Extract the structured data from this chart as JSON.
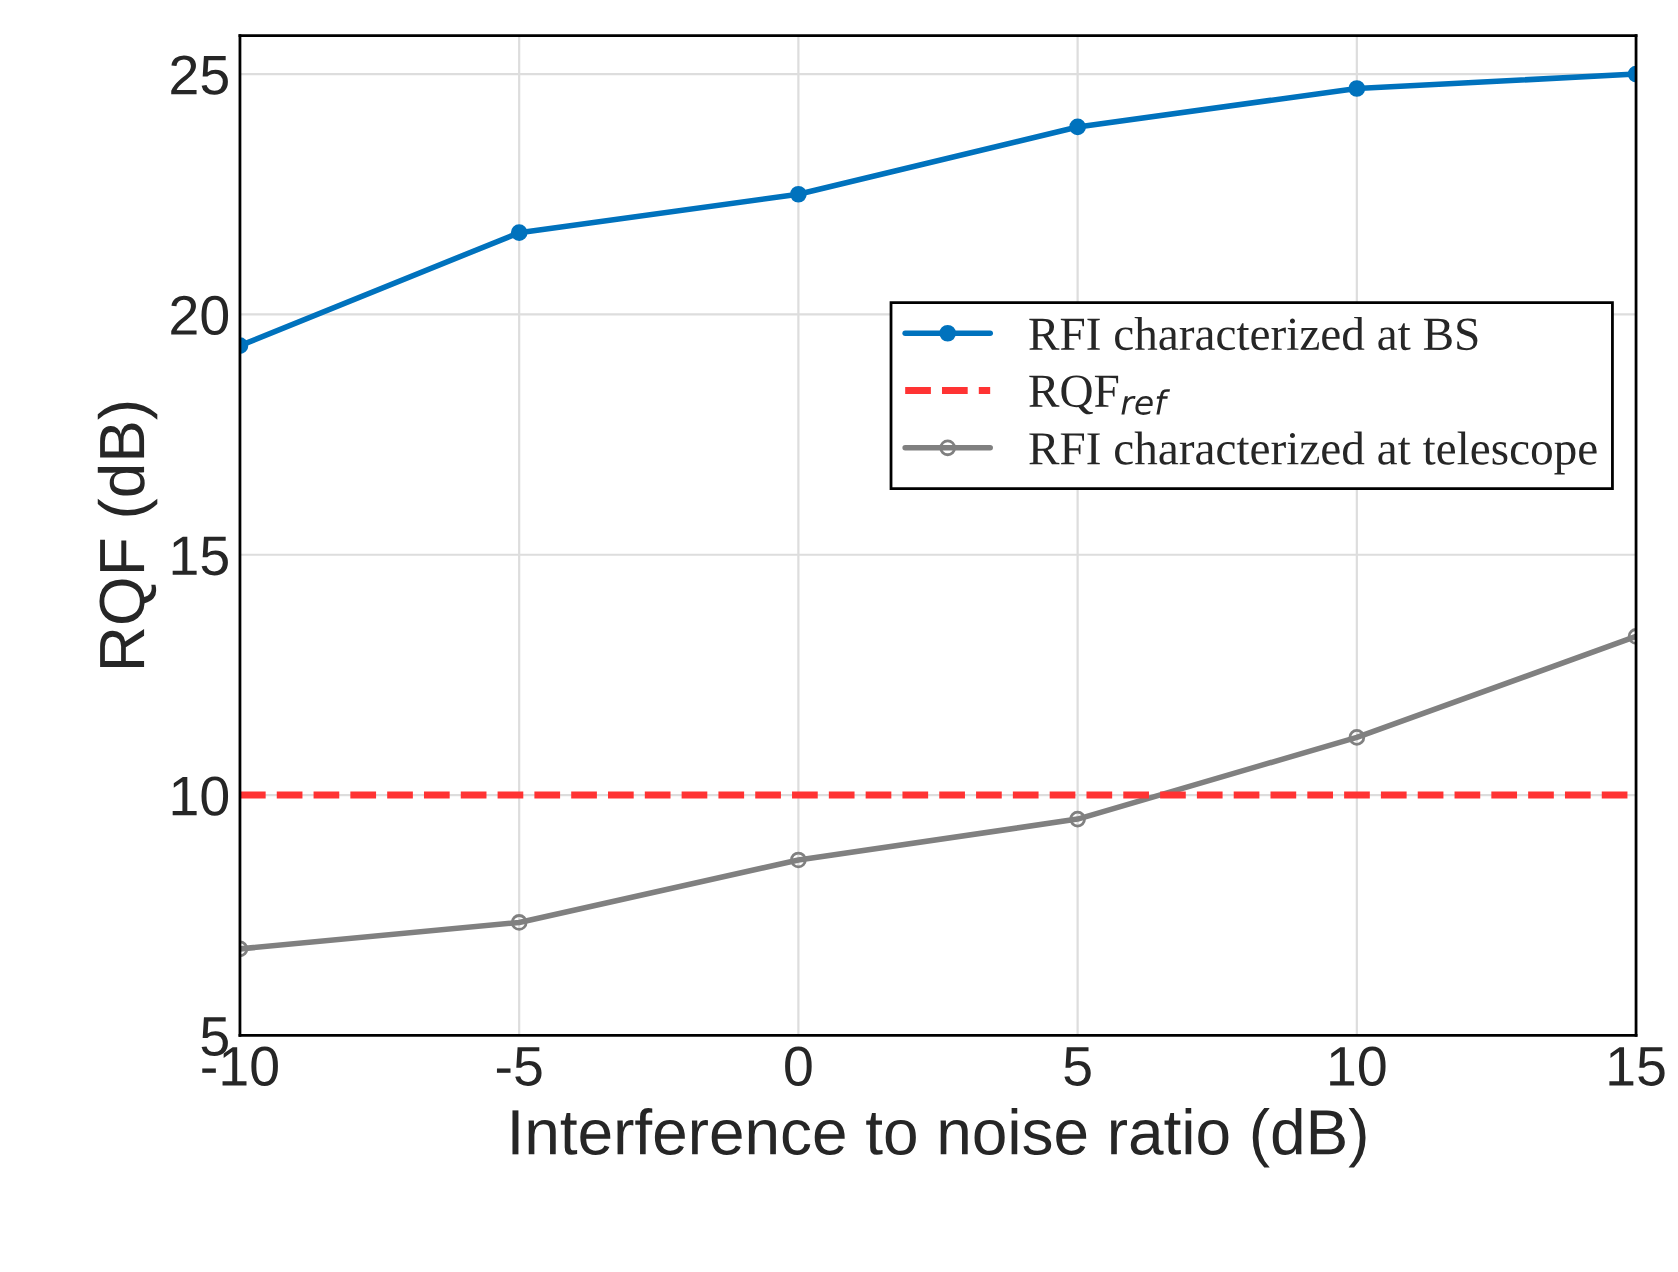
{
  "chart_data": {
    "type": "line",
    "xlabel": "Interference to noise ratio (dB)",
    "ylabel": "RQF (dB)",
    "x": [
      -10,
      -5,
      0,
      5,
      10,
      15
    ],
    "series": [
      {
        "name": "RFI characterized at BS",
        "color": "#0072bd",
        "marker": "circle",
        "values": [
          19.35,
          21.7,
          22.5,
          23.9,
          24.7,
          25.0
        ]
      },
      {
        "name": "RFI characterized at telescope",
        "color": "#808080",
        "marker": "circle",
        "values": [
          6.8,
          7.35,
          8.65,
          9.5,
          11.2,
          13.3
        ]
      }
    ],
    "ref_lines": [
      {
        "axis": "y",
        "value": 10,
        "label": "RQF$_{ref}$",
        "color": "#ff3333",
        "line_style": "dashed"
      }
    ],
    "xlim": [
      -10,
      15
    ],
    "xticks": [
      -10,
      -5,
      0,
      5,
      10,
      15
    ],
    "ylim": [
      5,
      25.8
    ],
    "yticks": [
      5,
      10,
      15,
      20,
      25
    ],
    "grid": true,
    "legend": "right",
    "line_style": "solid"
  }
}
